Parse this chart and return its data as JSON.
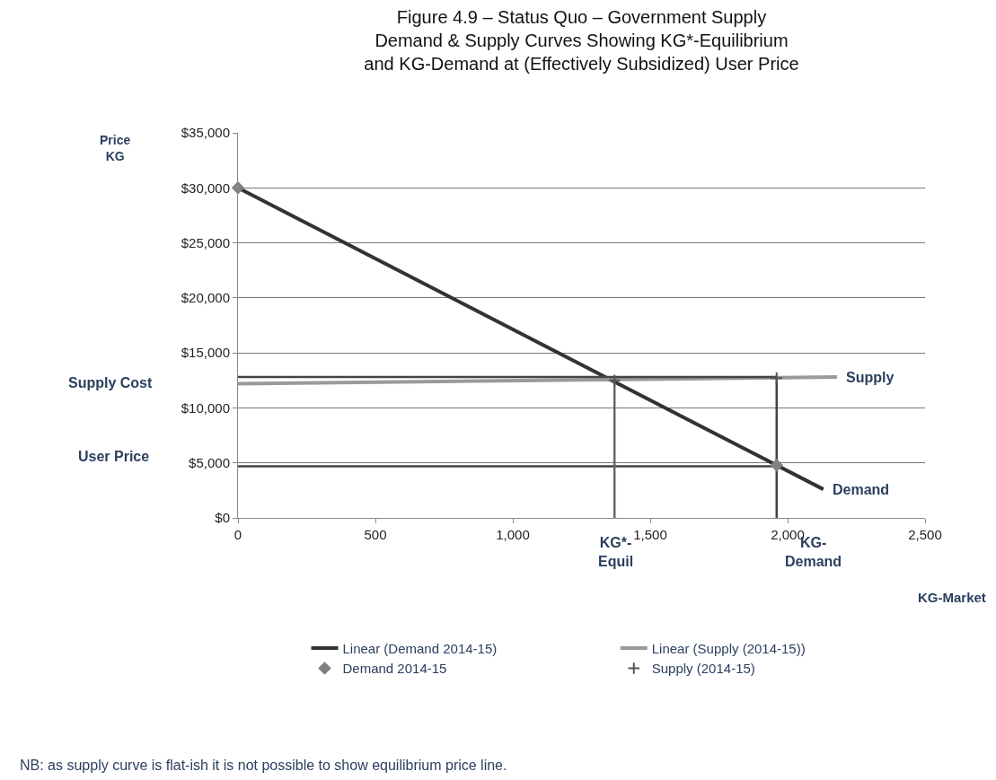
{
  "chart_data": {
    "type": "line",
    "title": "Figure 4.9 – Status Quo – Government Supply\nDemand & Supply Curves Showing KG*-Equilibrium\nand KG-Demand at (Effectively Subsidized) User Price",
    "xlabel": "KG-Market",
    "xlim": [
      0,
      2500
    ],
    "ylim": [
      0,
      35000
    ],
    "xticks": [
      0,
      500,
      {
        "value": 1000,
        "label": "1,000"
      },
      {
        "value": 1500,
        "label": "1,500"
      },
      {
        "value": 2000,
        "label": "2,000"
      },
      {
        "value": 2500,
        "label": "2,500"
      }
    ],
    "yticks": [
      {
        "value": 0,
        "label": "$0"
      },
      {
        "value": 5000,
        "label": "$5,000"
      },
      {
        "value": 10000,
        "label": "$10,000"
      },
      {
        "value": 15000,
        "label": "$15,000"
      },
      {
        "value": 20000,
        "label": "$20,000"
      },
      {
        "value": 25000,
        "label": "$25,000"
      },
      {
        "value": 30000,
        "label": "$30,000"
      },
      {
        "value": 35000,
        "label": "$35,000"
      }
    ],
    "grid": "y",
    "legend": "bottom",
    "line_style": "solid",
    "series": [
      {
        "name": "Demand 2014-15",
        "type": "scatter",
        "marker": "diamond",
        "color": "#808080",
        "x": [
          0,
          1960
        ],
        "values": [
          30000,
          4800
        ]
      },
      {
        "name": "Supply (2014-15)",
        "type": "scatter",
        "marker": "cross",
        "color": "#555555",
        "x": [
          1370,
          1960
        ],
        "values": [
          12500,
          12700
        ]
      },
      {
        "name": "Linear (Demand 2014-15)",
        "color": "#333333",
        "x": [
          0,
          2130
        ],
        "values": [
          30000,
          2600
        ]
      },
      {
        "name": "Linear (Supply (2014-15))",
        "color": "#9a9a9a",
        "x": [
          0,
          2180
        ],
        "values": [
          12200,
          12800
        ]
      },
      {
        "color": "#444444",
        "x": [
          0,
          1960
        ],
        "values": [
          12800,
          12800
        ]
      },
      {
        "color": "#444444",
        "x": [
          0,
          1960
        ],
        "values": [
          4700,
          4700
        ]
      },
      {
        "color": "#666666",
        "x": [
          1370,
          1370
        ],
        "values": [
          0,
          12800
        ]
      },
      {
        "color": "#444444",
        "x": [
          1960,
          1960
        ],
        "values": [
          0,
          12800
        ]
      }
    ],
    "annotations": [
      "Price\nKG",
      "Supply Cost",
      "User Price",
      "KG*-\nEquil",
      "KG-\nDemand",
      {
        "text": "Supply",
        "x": 2180,
        "y": 12800
      },
      {
        "text": "Demand",
        "x": 2130,
        "y": 2600
      },
      "NB: as supply curve is flat-ish it is not possible to show equilibrium price line."
    ]
  }
}
